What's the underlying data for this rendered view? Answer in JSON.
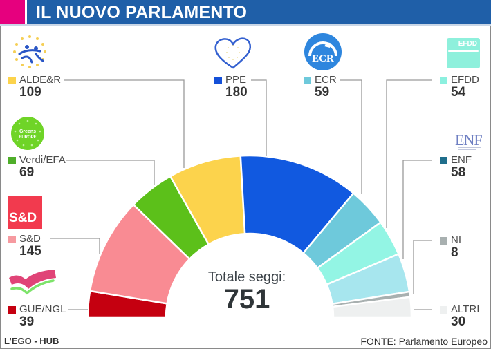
{
  "header": {
    "title": "IL NUOVO PARLAMENTO",
    "accent_color": "#e6007e",
    "bar_color": "#1f5fa8"
  },
  "center": {
    "label": "Totale seggi:",
    "total": "751"
  },
  "footer": {
    "credit": "L’EGO - HUB",
    "source": "FONTE: Parlamento Europeo"
  },
  "chart_data": {
    "type": "pie",
    "subtype": "hemicycle",
    "title": "IL NUOVO PARLAMENTO",
    "total": 751,
    "categories": [
      "GUE/NGL",
      "S&D",
      "Verdi/EFA",
      "ALDE&R",
      "PPE",
      "ECR",
      "EFDD",
      "ENF",
      "NI",
      "ALTRI"
    ],
    "values": [
      39,
      145,
      69,
      109,
      180,
      59,
      54,
      58,
      8,
      30
    ],
    "colors": [
      "#c50010",
      "#f98b93",
      "#5cc01a",
      "#fcd34c",
      "#1159e0",
      "#6ec9db",
      "#93f5e4",
      "#a7e6ee",
      "#a8b0b0",
      "#eef0f0"
    ],
    "legend_position": "around",
    "source": "FONTE: Parlamento Europeo"
  },
  "legend": [
    {
      "key": "alde",
      "name": "ALDE&R",
      "value": "109",
      "color": "#fcd34c",
      "logo": "alde-logo-icon"
    },
    {
      "key": "verdi",
      "name": "Verdi/EFA",
      "value": "69",
      "color": "#4fae2a",
      "logo": "greens-logo-icon"
    },
    {
      "key": "sd",
      "name": "S&D",
      "value": "145",
      "color": "#f69aa0",
      "logo": "sd-logo-icon"
    },
    {
      "key": "gue",
      "name": "GUE/NGL",
      "value": "39",
      "color": "#c50010",
      "logo": "gue-logo-icon"
    },
    {
      "key": "ppe",
      "name": "PPE",
      "value": "180",
      "color": "#1450d8",
      "logo": "ppe-heart-logo-icon"
    },
    {
      "key": "ecr",
      "name": "ECR",
      "value": "59",
      "color": "#6ec9db",
      "logo": "ecr-logo-icon"
    },
    {
      "key": "efdd",
      "name": "EFDD",
      "value": "54",
      "color": "#8cf0df",
      "logo": "efdd-logo-icon"
    },
    {
      "key": "enf",
      "name": "ENF",
      "value": "58",
      "color": "#1f6e8c",
      "logo": "enf-logo-icon"
    },
    {
      "key": "ni",
      "name": "NI",
      "value": "8",
      "color": "#a8b0b0",
      "logo": ""
    },
    {
      "key": "altri",
      "name": "ALTRI",
      "value": "30",
      "color": "#eef0f0",
      "logo": ""
    }
  ],
  "logos": {
    "sd_text": "S&D",
    "ecr_text": "ECR",
    "efdd_text": "EFDD",
    "enf_text": "ENF",
    "greens_text": "Greens EUROPE"
  }
}
